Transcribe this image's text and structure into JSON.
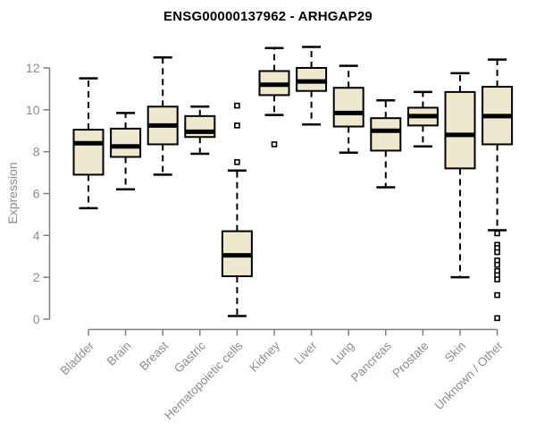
{
  "title": "ENSG00000137962 - ARHGAP29",
  "colors": {
    "background": "#FFFFFF",
    "box_fill": "#EDE8CE",
    "box_stroke": "#000000",
    "median_stroke": "#000000",
    "whisker_stroke": "#000000",
    "outlier_stroke": "#000000",
    "axis": "#7F7F7F",
    "tick_label": "#8C8C8C",
    "title_text": "#000000"
  },
  "chart_data": {
    "type": "boxplot",
    "title": "ENSG00000137962 - ARHGAP29",
    "ylabel": "Expression",
    "xlabel": "",
    "ylim": [
      0,
      13.5
    ],
    "yticks": [
      0,
      2,
      4,
      6,
      8,
      10,
      12
    ],
    "grid": false,
    "legend_position": "none",
    "categories": [
      "Bladder",
      "Brain",
      "Breast",
      "Gastric",
      "Hematopoietic cells",
      "Kidney",
      "Liver",
      "Lung",
      "Pancreas",
      "Prostate",
      "Skin",
      "Unknown / Other"
    ],
    "series": [
      {
        "name": "Bladder",
        "whisker_low": 5.3,
        "q1": 6.9,
        "median": 8.4,
        "q3": 9.05,
        "whisker_high": 11.5,
        "outliers": []
      },
      {
        "name": "Brain",
        "whisker_low": 6.2,
        "q1": 7.75,
        "median": 8.25,
        "q3": 9.1,
        "whisker_high": 9.85,
        "outliers": []
      },
      {
        "name": "Breast",
        "whisker_low": 6.9,
        "q1": 8.35,
        "median": 9.25,
        "q3": 10.15,
        "whisker_high": 12.5,
        "outliers": []
      },
      {
        "name": "Gastric",
        "whisker_low": 7.9,
        "q1": 8.7,
        "median": 8.95,
        "q3": 9.7,
        "whisker_high": 10.15,
        "outliers": []
      },
      {
        "name": "Hematopoietic cells",
        "whisker_low": 0.15,
        "q1": 2.05,
        "median": 3.05,
        "q3": 4.2,
        "whisker_high": 7.1,
        "outliers": [
          10.2,
          9.25,
          7.5
        ]
      },
      {
        "name": "Kidney",
        "whisker_low": 9.75,
        "q1": 10.7,
        "median": 11.2,
        "q3": 11.85,
        "whisker_high": 12.95,
        "outliers": [
          8.35
        ]
      },
      {
        "name": "Liver",
        "whisker_low": 9.3,
        "q1": 10.9,
        "median": 11.35,
        "q3": 12.0,
        "whisker_high": 13.0,
        "outliers": []
      },
      {
        "name": "Lung",
        "whisker_low": 7.95,
        "q1": 9.2,
        "median": 9.85,
        "q3": 11.05,
        "whisker_high": 12.1,
        "outliers": []
      },
      {
        "name": "Pancreas",
        "whisker_low": 6.3,
        "q1": 8.05,
        "median": 9.0,
        "q3": 9.6,
        "whisker_high": 10.45,
        "outliers": []
      },
      {
        "name": "Prostate",
        "whisker_low": 8.25,
        "q1": 9.25,
        "median": 9.7,
        "q3": 10.1,
        "whisker_high": 10.85,
        "outliers": []
      },
      {
        "name": "Skin",
        "whisker_low": 2.0,
        "q1": 7.2,
        "median": 8.8,
        "q3": 10.85,
        "whisker_high": 11.75,
        "outliers": []
      },
      {
        "name": "Unknown / Other",
        "whisker_low": 4.25,
        "q1": 8.35,
        "median": 9.7,
        "q3": 11.1,
        "whisker_high": 12.4,
        "outliers": [
          4.1,
          3.55,
          3.4,
          3.2,
          2.8,
          2.6,
          2.3,
          2.1,
          1.9,
          1.15,
          0.05
        ]
      }
    ]
  }
}
